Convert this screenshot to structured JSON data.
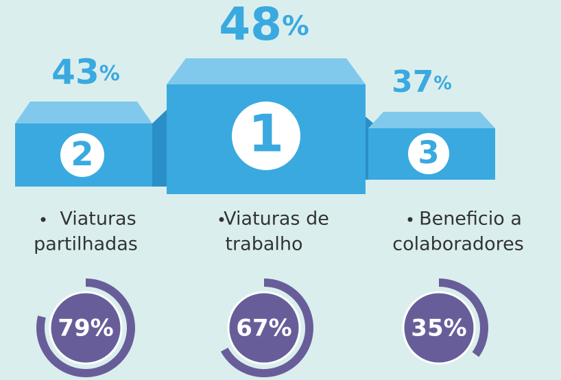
{
  "podium": [
    {
      "rank": 2,
      "percent": 43,
      "sign": "%",
      "lines": [
        "Viaturas",
        "partilhadas"
      ]
    },
    {
      "rank": 1,
      "percent": 48,
      "sign": "%",
      "lines": [
        "Viaturas de",
        "trabalho"
      ]
    },
    {
      "rank": 3,
      "percent": 37,
      "sign": "%",
      "lines": [
        "Beneficio a",
        "colaboradores"
      ]
    }
  ],
  "gauges": [
    {
      "value": 79,
      "label": "79%"
    },
    {
      "value": 67,
      "label": "67%"
    },
    {
      "value": 35,
      "label": "35%"
    }
  ]
}
